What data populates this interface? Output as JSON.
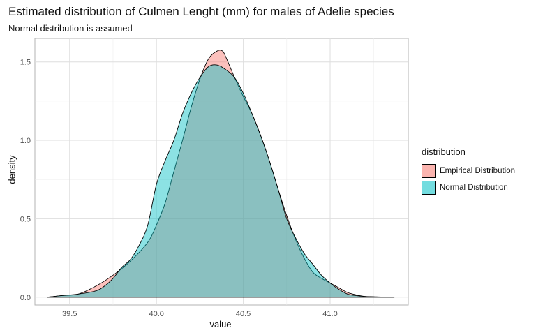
{
  "chart_data": {
    "type": "area",
    "title": "Estimated distribution of Culmen Lenght (mm) for males of Adelie species",
    "subtitle": "Normal distribution is assumed",
    "xlabel": "value",
    "ylabel": "density",
    "xlim": [
      39.3,
      41.45
    ],
    "ylim": [
      -0.05,
      1.65
    ],
    "xticks": [
      39.5,
      40.0,
      40.5,
      41.0
    ],
    "xtick_labels": [
      "39.5",
      "40.0",
      "40.5",
      "41.0"
    ],
    "yticks": [
      0.0,
      0.5,
      1.0,
      1.5
    ],
    "ytick_labels": [
      "0.0",
      "0.5",
      "1.0",
      "1.5"
    ],
    "grid": true,
    "legend": {
      "title": "distribution",
      "placement": "right"
    },
    "series": [
      {
        "name": "Empirical Distribution",
        "color": "#F8766D",
        "opacity": 0.45,
        "x": [
          39.37,
          39.45,
          39.55,
          39.65,
          39.75,
          39.85,
          39.95,
          40.0,
          40.05,
          40.1,
          40.15,
          40.2,
          40.25,
          40.3,
          40.35,
          40.38,
          40.4,
          40.45,
          40.5,
          40.55,
          40.6,
          40.65,
          40.7,
          40.75,
          40.8,
          40.85,
          40.9,
          40.95,
          41.0,
          41.05,
          41.1,
          41.15,
          41.2,
          41.25,
          41.3,
          41.37
        ],
        "y": [
          0.0,
          0.01,
          0.02,
          0.07,
          0.14,
          0.23,
          0.35,
          0.46,
          0.6,
          0.8,
          1.0,
          1.21,
          1.39,
          1.52,
          1.57,
          1.57,
          1.53,
          1.4,
          1.28,
          1.17,
          1.03,
          0.87,
          0.69,
          0.52,
          0.37,
          0.25,
          0.16,
          0.12,
          0.09,
          0.06,
          0.03,
          0.015,
          0.005,
          0.002,
          0.001,
          0.0
        ]
      },
      {
        "name": "Normal Distribution",
        "color": "#00BFC4",
        "opacity": 0.45,
        "x": [
          39.37,
          39.45,
          39.55,
          39.65,
          39.7,
          39.75,
          39.8,
          39.85,
          39.9,
          39.95,
          40.0,
          40.05,
          40.1,
          40.15,
          40.2,
          40.25,
          40.3,
          40.35,
          40.4,
          40.45,
          40.5,
          40.55,
          40.6,
          40.65,
          40.7,
          40.75,
          40.8,
          40.85,
          40.9,
          40.95,
          41.0,
          41.05,
          41.1,
          41.15,
          41.2,
          41.25,
          41.3,
          41.37
        ],
        "y": [
          0.0,
          0.01,
          0.02,
          0.04,
          0.07,
          0.12,
          0.19,
          0.24,
          0.33,
          0.46,
          0.72,
          0.87,
          1.0,
          1.17,
          1.3,
          1.4,
          1.47,
          1.48,
          1.45,
          1.4,
          1.3,
          1.17,
          1.03,
          0.87,
          0.69,
          0.5,
          0.38,
          0.28,
          0.21,
          0.14,
          0.09,
          0.05,
          0.02,
          0.01,
          0.005,
          0.003,
          0.001,
          0.0
        ]
      }
    ]
  }
}
